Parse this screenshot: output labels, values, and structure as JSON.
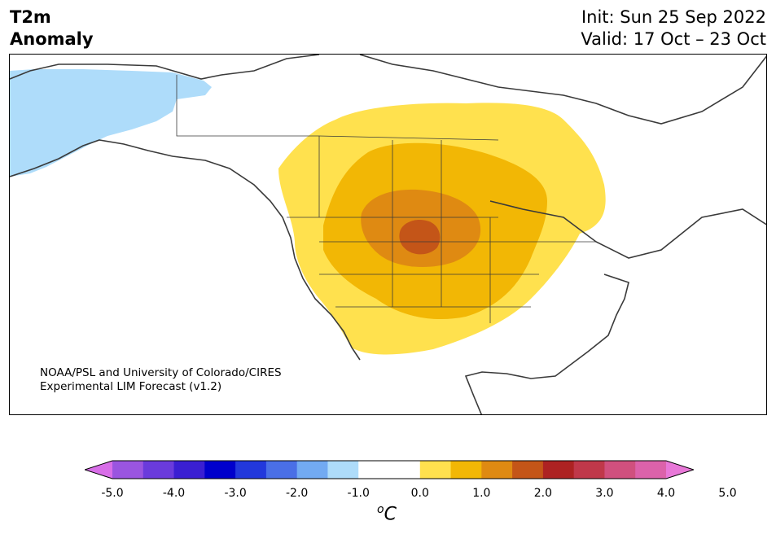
{
  "header": {
    "variable": "T2m",
    "subtitle": "Anomaly",
    "init": "Init: Sun 25 Sep 2022",
    "valid": "Valid: 17 Oct – 23 Oct"
  },
  "credit": {
    "line1": "NOAA/PSL and University of Colorado/CIRES",
    "line2": "Experimental LIM Forecast (v1.2)"
  },
  "colorbar": {
    "colors": [
      "#d86ee8",
      "#9a55e0",
      "#6a3bdc",
      "#3a1fd2",
      "#0000cc",
      "#2238dc",
      "#4a6fe6",
      "#72aaf2",
      "#aedcfa",
      "#ffffff",
      "#ffffff",
      "#ffe14e",
      "#f2b705",
      "#df8a12",
      "#c45518",
      "#ad2222",
      "#c0384a",
      "#d0507e",
      "#dc62aa",
      "#e878d8"
    ],
    "ticks": [
      "-5.0",
      "-4.0",
      "-3.0",
      "-2.0",
      "-1.0",
      "0.0",
      "1.0",
      "2.0",
      "3.0",
      "4.0",
      "5.0"
    ],
    "unit_sup": "o",
    "unit": "C"
  },
  "legend_colors": {
    "cold_light": "#aedcfa",
    "warm_1": "#ffe14e",
    "warm_2": "#f2b705",
    "warm_3": "#df8a12",
    "warm_4": "#c45518"
  }
}
